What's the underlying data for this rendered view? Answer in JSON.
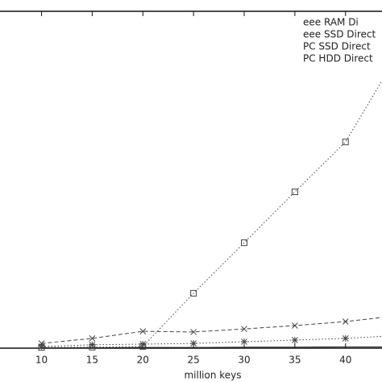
{
  "chart_data": {
    "type": "line",
    "x_label": "million keys",
    "x": [
      10,
      15,
      20,
      25,
      30,
      35,
      40,
      43.6
    ],
    "xlim": [
      5.9,
      43.6
    ],
    "xticks": [
      10,
      15,
      20,
      25,
      30,
      35,
      40
    ],
    "ylim": [
      0,
      100
    ],
    "series": [
      {
        "name": "eee RAM Di",
        "color": "#444444",
        "dash": "1.5 2.5",
        "marker": "square",
        "values": [
          0.2,
          0.3,
          0.5,
          16.3,
          31.3,
          46.4,
          61.2,
          79.4
        ]
      },
      {
        "name": "eee SSD Direct",
        "color": "#444444",
        "dash": "5 3",
        "marker": "x",
        "values": [
          1.4,
          2.9,
          5.0,
          4.8,
          5.7,
          6.7,
          7.9,
          9.1
        ]
      },
      {
        "name": "PC SSD Direct",
        "color": "#444444",
        "dash": "1.5 2.5",
        "marker": "star",
        "values": [
          0.5,
          1.0,
          1.2,
          1.4,
          1.9,
          2.4,
          2.9,
          3.5
        ]
      },
      {
        "name": "PC HDD Direct",
        "color": "#222222",
        "dash": "none",
        "marker": "none",
        "values": [
          0.1,
          0.1,
          0.2,
          0.2,
          0.3,
          0.3,
          0.4,
          0.4
        ]
      }
    ]
  }
}
